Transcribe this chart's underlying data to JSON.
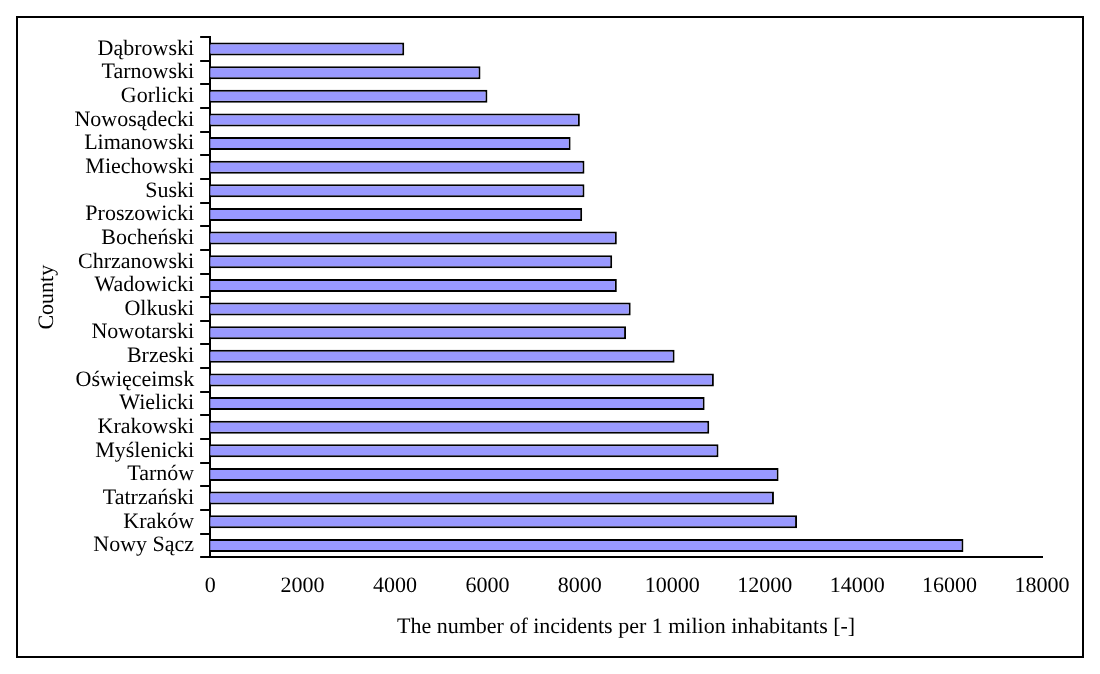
{
  "chart_data": {
    "type": "bar",
    "orientation": "horizontal",
    "xlabel": "The number of incidents per 1 milion inhabitants [-]",
    "ylabel": "County",
    "categories": [
      "Dąbrowski",
      "Tarnowski",
      "Gorlicki",
      "Nowosądecki",
      "Limanowski",
      "Miechowski",
      "Suski",
      "Proszowicki",
      "Bocheński",
      "Chrzanowski",
      "Wadowicki",
      "Olkuski",
      "Nowotarski",
      "Brzeski",
      "Oświęceimsk",
      "Wielicki",
      "Krakowski",
      "Myślenicki",
      "Tarnów",
      "Tatrzański",
      "Kraków",
      "Nowy Sącz"
    ],
    "values": [
      4200,
      5850,
      6000,
      8000,
      7800,
      8100,
      8100,
      8050,
      8800,
      8700,
      8800,
      9100,
      9000,
      10050,
      10900,
      10700,
      10800,
      11000,
      12300,
      12200,
      12700,
      16300
    ],
    "color": "#9999ff",
    "xlim": [
      0,
      18000
    ],
    "xticks": [
      0,
      2000,
      4000,
      6000,
      8000,
      10000,
      12000,
      14000,
      16000,
      18000
    ],
    "grid": false,
    "legend": false
  }
}
